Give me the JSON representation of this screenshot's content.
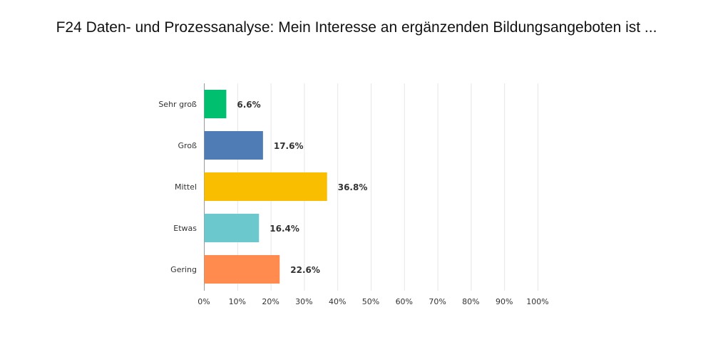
{
  "chart_data": {
    "type": "bar",
    "orientation": "horizontal",
    "title": "F24 Daten- und Prozessanalyse: Mein Interesse an ergänzenden Bildungsangeboten ist ...",
    "categories": [
      "Sehr groß",
      "Groß",
      "Mittel",
      "Etwas",
      "Gering"
    ],
    "values": [
      6.6,
      17.6,
      36.8,
      16.4,
      22.6
    ],
    "value_labels": [
      "6.6%",
      "17.6%",
      "36.8%",
      "16.4%",
      "22.6%"
    ],
    "colors": [
      "#00bf6f",
      "#507cb6",
      "#f9be00",
      "#6bc8cd",
      "#ff8b4f"
    ],
    "xlim": [
      0,
      100
    ],
    "xticks": [
      0,
      10,
      20,
      30,
      40,
      50,
      60,
      70,
      80,
      90,
      100
    ],
    "xtick_labels": [
      "0%",
      "10%",
      "20%",
      "30%",
      "40%",
      "50%",
      "60%",
      "70%",
      "80%",
      "90%",
      "100%"
    ],
    "xlabel": "",
    "ylabel": "",
    "grid": true,
    "legend": "none"
  }
}
